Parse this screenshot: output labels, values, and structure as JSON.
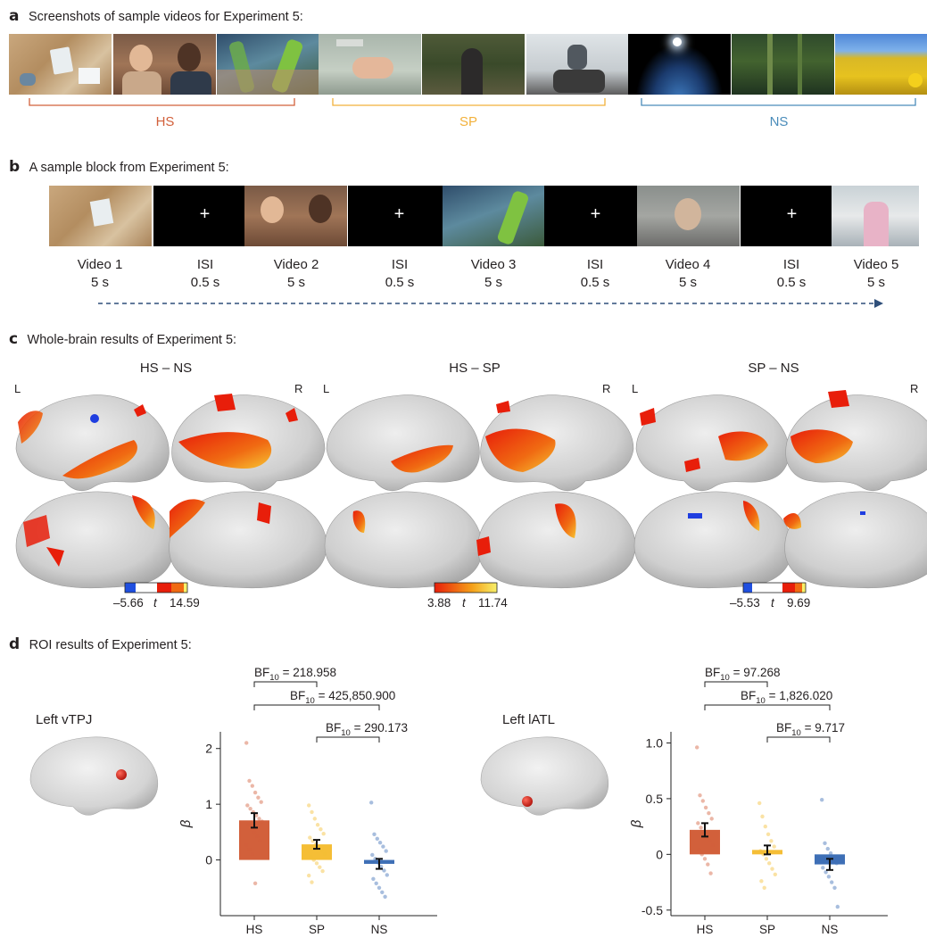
{
  "panel_a": {
    "letter": "a",
    "title": "Screenshots of sample videos for Experiment 5:",
    "groups": [
      {
        "label": "HS",
        "color": "#d2603b"
      },
      {
        "label": "SP",
        "color": "#f2b13b"
      },
      {
        "label": "NS",
        "color": "#4a8cba"
      }
    ]
  },
  "panel_b": {
    "letter": "b",
    "title": "A sample block from Experiment 5:",
    "fixation": "+",
    "items": [
      {
        "name": "Video 1",
        "dur": "5 s"
      },
      {
        "name": "ISI",
        "dur": "0.5 s"
      },
      {
        "name": "Video 2",
        "dur": "5 s"
      },
      {
        "name": "ISI",
        "dur": "0.5 s"
      },
      {
        "name": "Video 3",
        "dur": "5 s"
      },
      {
        "name": "ISI",
        "dur": "0.5 s"
      },
      {
        "name": "Video 4",
        "dur": "5 s"
      },
      {
        "name": "ISI",
        "dur": "0.5 s"
      },
      {
        "name": "Video 5",
        "dur": "5 s"
      }
    ]
  },
  "panel_c": {
    "letter": "c",
    "title": "Whole-brain results of Experiment 5:",
    "contrasts": [
      {
        "title": "HS – NS",
        "left": "L",
        "right": "R",
        "min": "–5.66",
        "stat": "t",
        "max": "14.59"
      },
      {
        "title": "HS – SP",
        "left": "L",
        "right": "R",
        "min": "3.88",
        "stat": "t",
        "max": "11.74"
      },
      {
        "title": "SP – NS",
        "left": "L",
        "right": "R",
        "min": "–5.53",
        "stat": "t",
        "max": "9.69"
      }
    ]
  },
  "panel_d": {
    "letter": "d",
    "title": "ROI results of Experiment 5:",
    "rois": [
      "Left vTPJ",
      "Left lATL"
    ]
  },
  "chart_data": [
    {
      "type": "bar",
      "roi": "Left vTPJ",
      "categories": [
        "HS",
        "SP",
        "NS"
      ],
      "values": [
        0.71,
        0.28,
        -0.07
      ],
      "errors": [
        0.13,
        0.08,
        0.09
      ],
      "colors": [
        "#d2603b",
        "#f5be36",
        "#3e6fb6"
      ],
      "ylabel": "β",
      "ylim": [
        -1.0,
        2.3
      ],
      "yticks": [
        0,
        1,
        2
      ],
      "points": {
        "HS": [
          2.1,
          1.42,
          1.33,
          1.21,
          1.12,
          1.04,
          0.98,
          0.92,
          0.86,
          0.8,
          0.74,
          0.69,
          0.63,
          0.56,
          0.49,
          0.42,
          0.34,
          0.27,
          0.19,
          0.1,
          -0.42
        ],
        "SP": [
          0.98,
          0.86,
          0.74,
          0.63,
          0.55,
          0.47,
          0.4,
          0.34,
          0.28,
          0.23,
          0.17,
          0.11,
          0.05,
          0.0,
          -0.06,
          -0.13,
          -0.2,
          -0.28,
          -0.4
        ],
        "NS": [
          1.03,
          0.46,
          0.38,
          0.31,
          0.24,
          0.16,
          0.09,
          0.02,
          -0.05,
          -0.12,
          -0.19,
          -0.27,
          -0.34,
          -0.42,
          -0.5,
          -0.58,
          -0.66
        ]
      },
      "brackets": [
        {
          "label": "218.958",
          "from": 0,
          "to": 1
        },
        {
          "label": "425,850.900",
          "from": 0,
          "to": 2
        },
        {
          "label": "290.173",
          "from": 1,
          "to": 2
        }
      ],
      "bf_prefix": "BF",
      "bf_sub": "10",
      "bf_eq": " = "
    },
    {
      "type": "bar",
      "roi": "Left lATL",
      "categories": [
        "HS",
        "SP",
        "NS"
      ],
      "values": [
        0.22,
        0.04,
        -0.09
      ],
      "errors": [
        0.06,
        0.04,
        0.05
      ],
      "colors": [
        "#d2603b",
        "#f5be36",
        "#3e6fb6"
      ],
      "ylabel": "β",
      "ylim": [
        -0.55,
        1.1
      ],
      "yticks": [
        -0.5,
        0,
        0.5,
        1.0
      ],
      "ytick_labels": [
        "-0.5",
        "0",
        "0.5",
        "1.0"
      ],
      "points": {
        "HS": [
          0.96,
          0.53,
          0.48,
          0.42,
          0.37,
          0.32,
          0.28,
          0.24,
          0.2,
          0.16,
          0.12,
          0.08,
          0.04,
          0.0,
          -0.04,
          -0.09,
          -0.17
        ],
        "SP": [
          0.46,
          0.34,
          0.25,
          0.18,
          0.12,
          0.07,
          0.03,
          0.0,
          -0.04,
          -0.08,
          -0.13,
          -0.18,
          -0.24,
          -0.3
        ],
        "NS": [
          0.49,
          0.1,
          0.05,
          0.01,
          -0.04,
          -0.08,
          -0.12,
          -0.16,
          -0.2,
          -0.25,
          -0.3,
          -0.47
        ]
      },
      "brackets": [
        {
          "label": "97.268",
          "from": 0,
          "to": 1
        },
        {
          "label": "1,826.020",
          "from": 0,
          "to": 2
        },
        {
          "label": "9.717",
          "from": 1,
          "to": 2
        }
      ],
      "bf_prefix": "BF",
      "bf_sub": "10",
      "bf_eq": " = "
    }
  ]
}
